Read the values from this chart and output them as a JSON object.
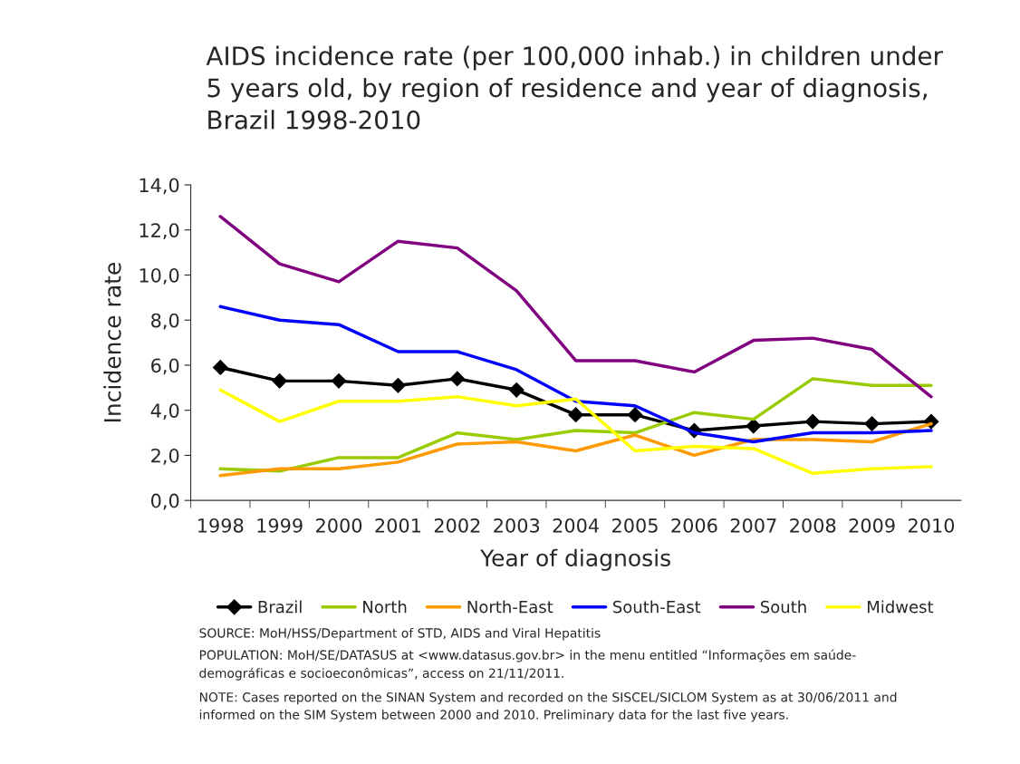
{
  "chart_data": {
    "type": "line",
    "title": "AIDS incidence rate (per 100,000 inhab.) in children under\n5 years old, by region of residence and year of diagnosis,\nBrazil 1998-2010",
    "xlabel": "Year of diagnosis",
    "ylabel": "Incidence rate",
    "categories": [
      "1998",
      "1999",
      "2000",
      "2001",
      "2002",
      "2003",
      "2004",
      "2005",
      "2006",
      "2007",
      "2008",
      "2009",
      "2010"
    ],
    "series": [
      {
        "name": "Brazil",
        "color": "#000000",
        "marker": "diamond",
        "values": [
          5.9,
          5.3,
          5.3,
          5.1,
          5.4,
          4.9,
          3.8,
          3.8,
          3.1,
          3.3,
          3.5,
          3.4,
          3.5
        ]
      },
      {
        "name": "North",
        "color": "#99cc00",
        "marker": "none",
        "values": [
          1.4,
          1.3,
          1.9,
          1.9,
          3.0,
          2.7,
          3.1,
          3.0,
          3.9,
          3.6,
          5.4,
          5.1,
          5.1
        ]
      },
      {
        "name": "North-East",
        "color": "#ff9900",
        "marker": "none",
        "values": [
          1.1,
          1.4,
          1.4,
          1.7,
          2.5,
          2.6,
          2.2,
          2.9,
          2.0,
          2.7,
          2.7,
          2.6,
          3.4
        ]
      },
      {
        "name": "South-East",
        "color": "#0000ff",
        "marker": "none",
        "values": [
          8.6,
          8.0,
          7.8,
          6.6,
          6.6,
          5.8,
          4.4,
          4.2,
          3.0,
          2.6,
          3.0,
          3.0,
          3.1
        ]
      },
      {
        "name": "South",
        "color": "#800080",
        "marker": "none",
        "values": [
          12.6,
          10.5,
          9.7,
          11.5,
          11.2,
          9.3,
          6.2,
          6.2,
          5.7,
          7.1,
          7.2,
          6.7,
          4.6
        ]
      },
      {
        "name": "Midwest",
        "color": "#ffff00",
        "marker": "none",
        "values": [
          4.9,
          3.5,
          4.4,
          4.4,
          4.6,
          4.2,
          4.5,
          2.2,
          2.4,
          2.3,
          1.2,
          1.4,
          1.5
        ]
      }
    ],
    "ylim": [
      0,
      14
    ],
    "yticks": [
      {
        "value": 0,
        "label": "0,0"
      },
      {
        "value": 2,
        "label": "2,0"
      },
      {
        "value": 4,
        "label": "4,0"
      },
      {
        "value": 6,
        "label": "6,0"
      },
      {
        "value": 8,
        "label": "8,0"
      },
      {
        "value": 10,
        "label": "10,0"
      },
      {
        "value": 12,
        "label": "12,0"
      },
      {
        "value": 14,
        "label": "14,0"
      }
    ],
    "grid": false,
    "legend": "bottom",
    "line_style": "solid",
    "annotations": [
      "SOURCE: MoH/HSS/Department of STD, AIDS and Viral Hepatitis",
      "POPULATION: MoH/SE/DATASUS at <www.datasus.gov.br> in the menu entitled “Informações em saúde-\ndemográficas e socioeconômicas”, access on 21/11/2011.",
      "NOTE: Cases reported on the SINAN System and recorded on the SISCEL/SICLOM System as at 30/06/2011 and\ninformed on the SIM System between 2000 and 2010. Preliminary data for the last five years."
    ]
  }
}
